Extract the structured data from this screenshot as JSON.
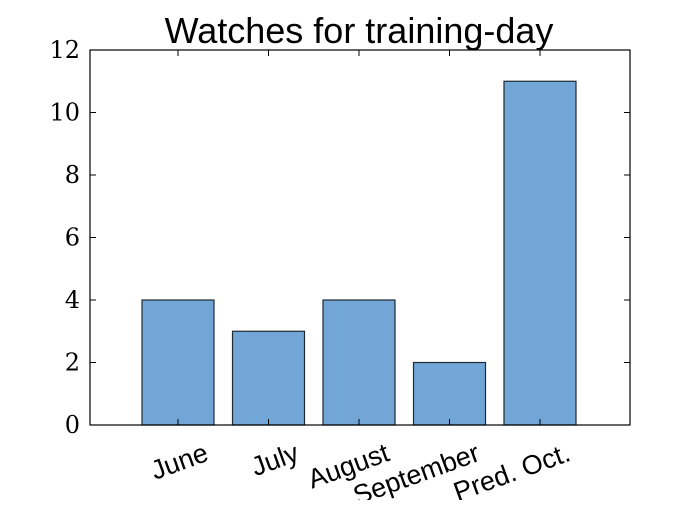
{
  "chart_data": {
    "type": "bar",
    "title": "Watches for training-day",
    "xlabel": "",
    "ylabel": "",
    "categories": [
      "June",
      "July",
      "August",
      "September",
      "Pred. Oct."
    ],
    "values": [
      4,
      3,
      4,
      2,
      11
    ],
    "ylim": [
      0,
      12
    ],
    "yticks": [
      "0",
      "2",
      "4",
      "6",
      "8",
      "10",
      "12"
    ],
    "bar_color": "#72a6d6",
    "bar_edge_color": "#1f2a33",
    "grid": false,
    "legend": "none"
  }
}
